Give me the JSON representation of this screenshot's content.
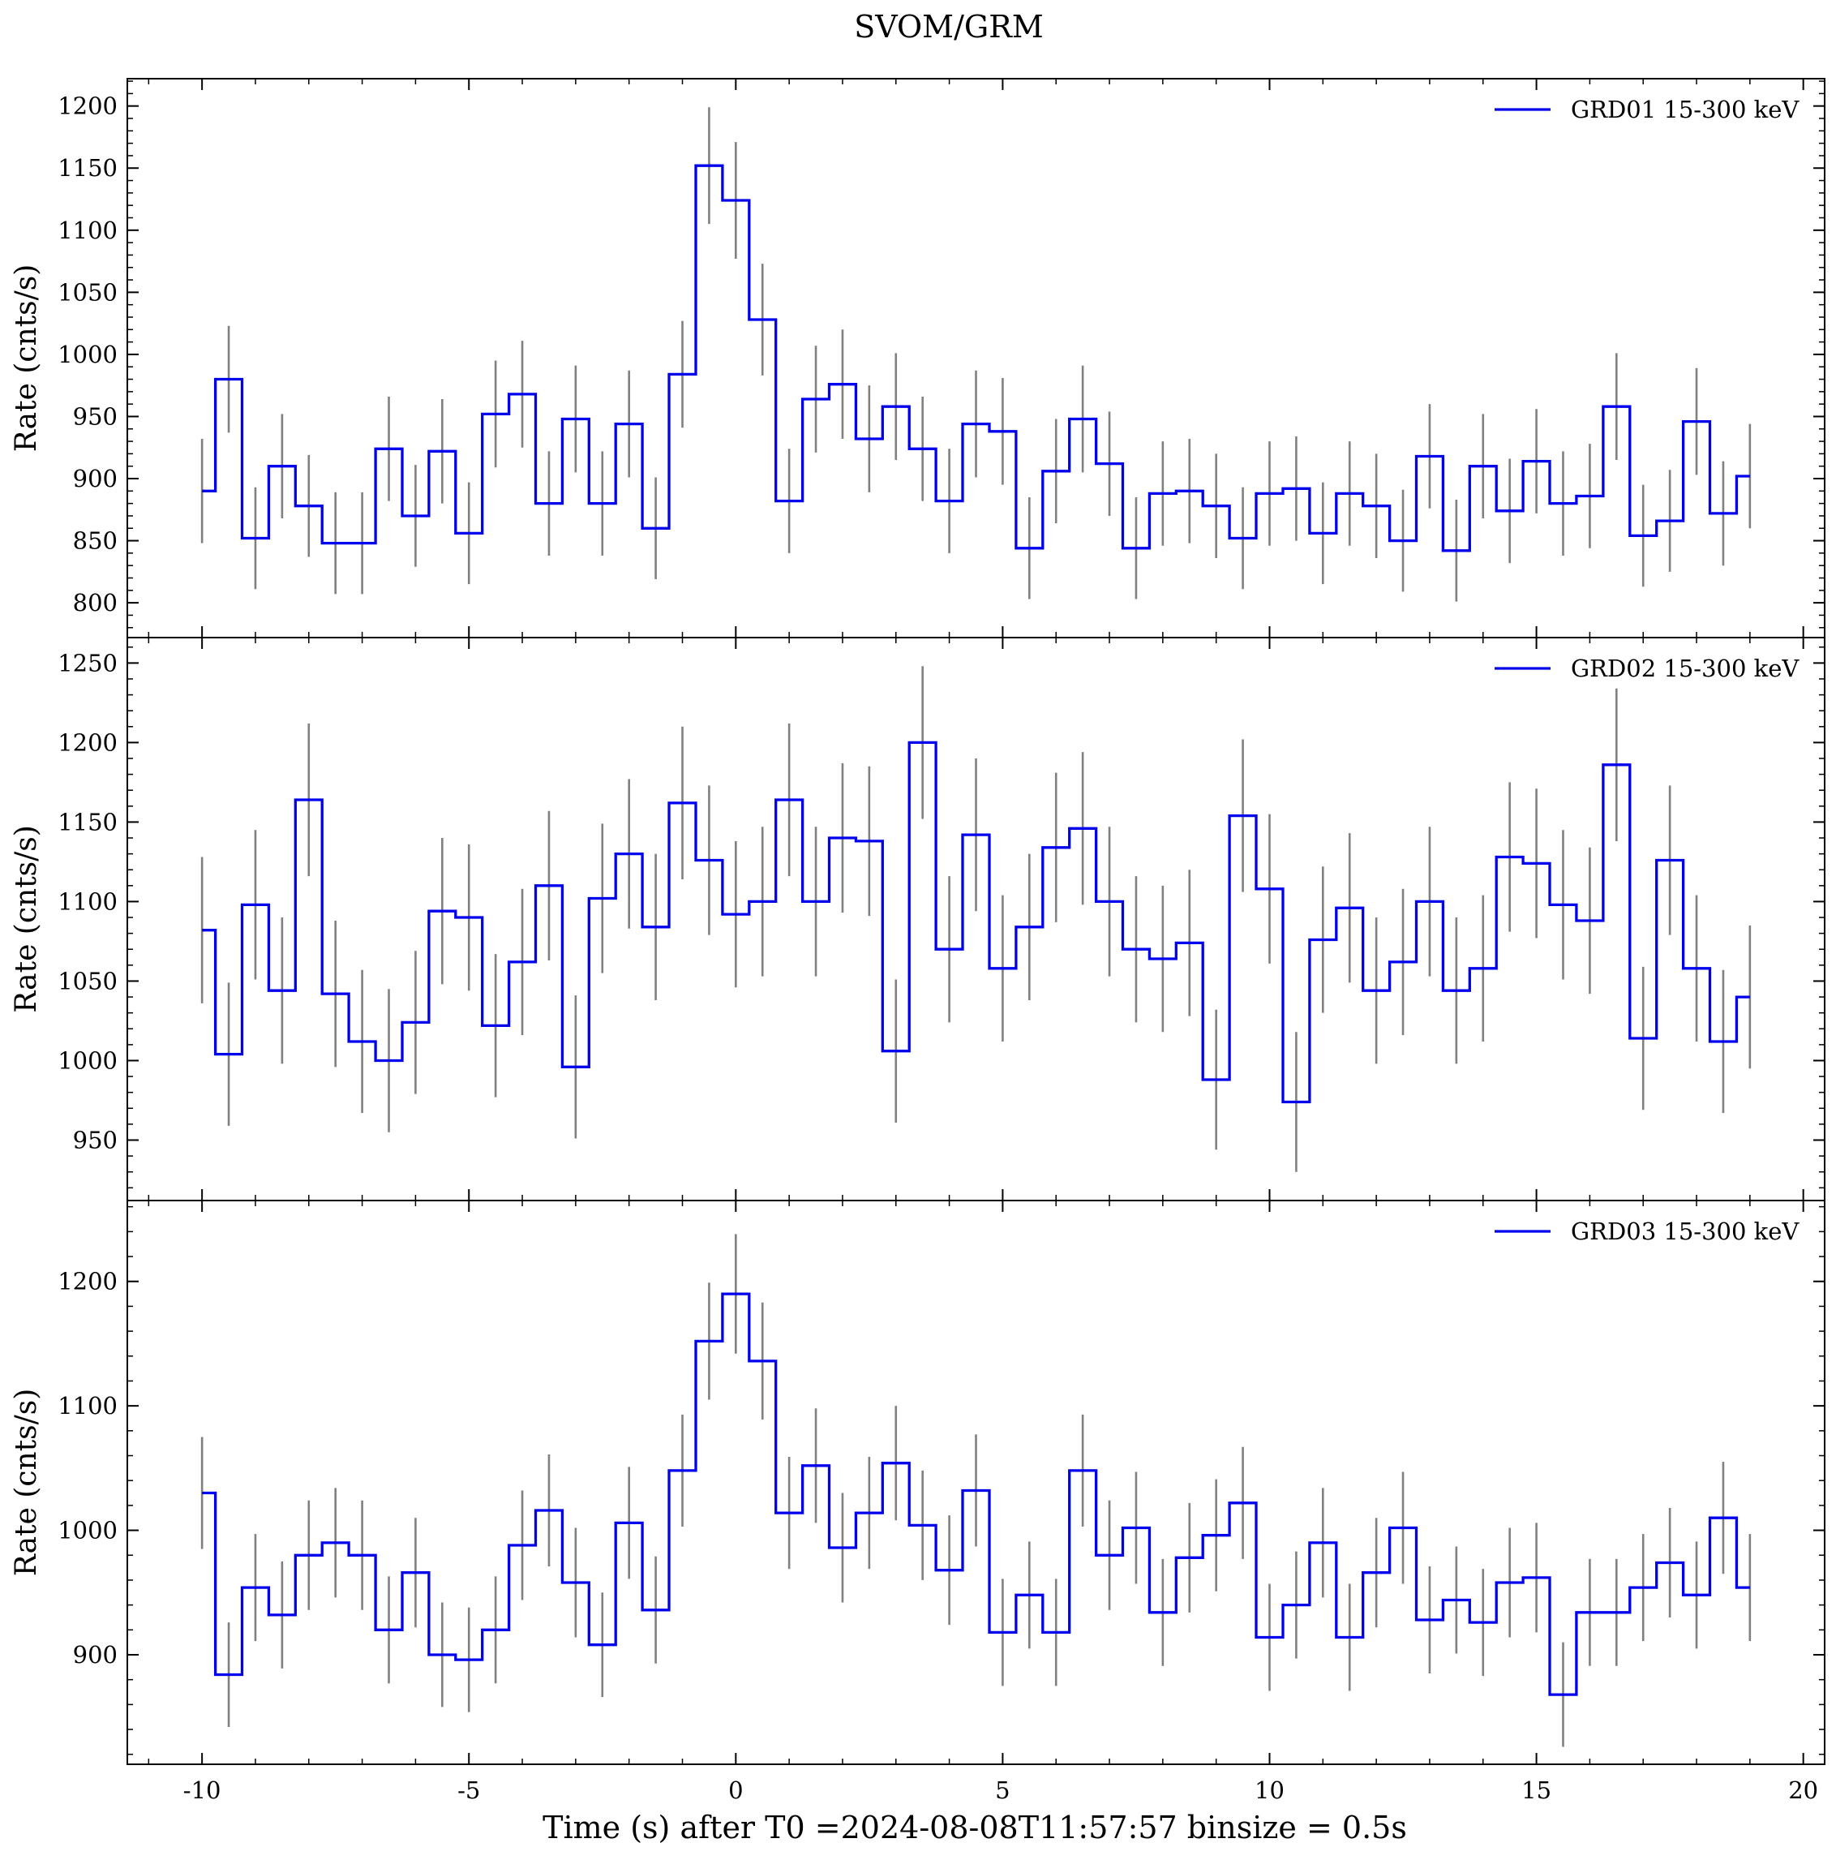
{
  "chart_data": {
    "type": "line",
    "title": "SVOM/GRM",
    "xlabel": "Time (s) after T0 =2024-08-08T11:57:57 binsize = 0.5s",
    "xlim": [
      -11.4,
      20.4
    ],
    "x_ticks": [
      -10,
      -5,
      0,
      5,
      10,
      15,
      20
    ],
    "x_tick_labels": [
      "-10",
      "-5",
      "0",
      "5",
      "10",
      "15",
      "20"
    ],
    "x_bin_start": [
      -10.0,
      -9.5,
      -9.0,
      -8.5,
      -8.0,
      -7.5,
      -7.0,
      -6.5,
      -6.0,
      -5.5,
      -5.0,
      -4.5,
      -4.0,
      -3.5,
      -3.0,
      -2.5,
      -2.0,
      -1.5,
      -1.0,
      -0.5,
      0.0,
      0.5,
      1.0,
      1.5,
      2.0,
      2.5,
      3.0,
      3.5,
      4.0,
      4.5,
      5.0,
      5.5,
      6.0,
      6.5,
      7.0,
      7.5,
      8.0,
      8.5,
      9.0,
      9.5,
      10.0,
      10.5,
      11.0,
      11.5,
      12.0,
      12.5,
      13.0,
      13.5,
      14.0,
      14.5,
      15.0,
      15.5,
      16.0,
      16.5,
      17.0,
      17.5,
      18.0,
      18.5,
      19.0
    ],
    "grid": false,
    "panels": [
      {
        "name": "GRD01 15-300 keV",
        "ylabel": "Rate (cnts/s)",
        "ylim": [
          772,
          1222
        ],
        "y_ticks": [
          800,
          850,
          900,
          950,
          1000,
          1050,
          1100,
          1150,
          1200
        ],
        "legend": "top-right",
        "color": "#0000ee",
        "values": [
          890,
          980,
          852,
          910,
          878,
          848,
          848,
          924,
          870,
          922,
          856,
          952,
          968,
          880,
          948,
          880,
          944,
          860,
          984,
          1152,
          1124,
          1028,
          882,
          964,
          976,
          932,
          958,
          924,
          882,
          944,
          938,
          844,
          906,
          948,
          912,
          844,
          888,
          890,
          878,
          852,
          888,
          892,
          856,
          888,
          878,
          850,
          918,
          842,
          910,
          874,
          914,
          880,
          886,
          958,
          854,
          866,
          946,
          872,
          902
        ],
        "errors": [
          42,
          43,
          41,
          42,
          41,
          41,
          41,
          42,
          41,
          42,
          41,
          43,
          43,
          42,
          43,
          42,
          43,
          41,
          43,
          47,
          47,
          45,
          42,
          43,
          44,
          43,
          43,
          42,
          42,
          43,
          43,
          41,
          42,
          43,
          42,
          41,
          42,
          42,
          42,
          41,
          42,
          42,
          41,
          42,
          42,
          41,
          42,
          41,
          42,
          42,
          42,
          42,
          42,
          43,
          41,
          41,
          43,
          42,
          42
        ]
      },
      {
        "name": "GRD02 15-300 keV",
        "ylabel": "Rate (cnts/s)",
        "ylim": [
          912,
          1266
        ],
        "y_ticks": [
          950,
          1000,
          1050,
          1100,
          1150,
          1200,
          1250
        ],
        "legend": "top-right",
        "color": "#0000ee",
        "values": [
          1082,
          1004,
          1098,
          1044,
          1164,
          1042,
          1012,
          1000,
          1024,
          1094,
          1090,
          1022,
          1062,
          1110,
          996,
          1102,
          1130,
          1084,
          1162,
          1126,
          1092,
          1100,
          1164,
          1100,
          1140,
          1138,
          1006,
          1200,
          1070,
          1142,
          1058,
          1084,
          1134,
          1146,
          1100,
          1070,
          1064,
          1074,
          988,
          1154,
          1108,
          974,
          1076,
          1096,
          1044,
          1062,
          1100,
          1044,
          1058,
          1128,
          1124,
          1098,
          1088,
          1186,
          1014,
          1126,
          1058,
          1012,
          1040
        ],
        "errors": [
          46,
          45,
          47,
          46,
          48,
          46,
          45,
          45,
          45,
          46,
          46,
          45,
          46,
          47,
          45,
          47,
          47,
          46,
          48,
          47,
          46,
          47,
          48,
          47,
          47,
          47,
          45,
          48,
          46,
          48,
          46,
          46,
          47,
          48,
          47,
          46,
          46,
          46,
          44,
          48,
          47,
          44,
          46,
          47,
          46,
          46,
          47,
          46,
          46,
          47,
          47,
          47,
          46,
          48,
          45,
          47,
          46,
          45,
          45
        ]
      },
      {
        "name": "GRD03 15-300 keV",
        "ylabel": "Rate (cnts/s)",
        "ylim": [
          812,
          1265
        ],
        "y_ticks": [
          900,
          1000,
          1100,
          1200
        ],
        "legend": "top-right",
        "color": "#0000ee",
        "values": [
          1030,
          884,
          954,
          932,
          980,
          990,
          980,
          920,
          966,
          900,
          896,
          920,
          988,
          1016,
          958,
          908,
          1006,
          936,
          1048,
          1152,
          1190,
          1136,
          1014,
          1052,
          986,
          1014,
          1054,
          1004,
          968,
          1032,
          918,
          948,
          918,
          1048,
          980,
          1002,
          934,
          978,
          996,
          1022,
          914,
          940,
          990,
          914,
          966,
          1002,
          928,
          944,
          926,
          958,
          962,
          868,
          934,
          934,
          954,
          974,
          948,
          1010,
          954
        ],
        "errors": [
          45,
          42,
          43,
          43,
          44,
          44,
          44,
          43,
          44,
          42,
          42,
          43,
          44,
          45,
          44,
          42,
          45,
          43,
          45,
          47,
          48,
          47,
          45,
          46,
          44,
          45,
          46,
          44,
          44,
          45,
          43,
          43,
          43,
          45,
          44,
          45,
          43,
          44,
          45,
          45,
          43,
          43,
          44,
          43,
          44,
          45,
          43,
          43,
          43,
          44,
          44,
          42,
          43,
          43,
          43,
          44,
          43,
          45,
          43
        ]
      }
    ]
  },
  "style": {
    "line_color": "#0000ee",
    "error_color": "#808080",
    "axis_color": "#000000"
  }
}
